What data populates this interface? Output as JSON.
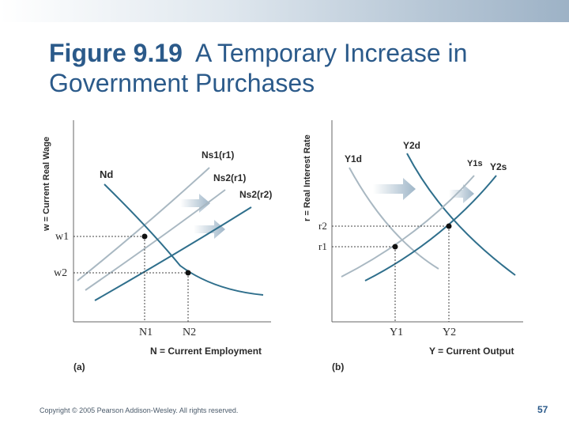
{
  "header": {
    "title_bold": "Figure 9.19",
    "title_rest": "A Temporary Increase in Government Purchases"
  },
  "panel_a": {
    "label": "(a)",
    "y_axis_label": "w = Current Real Wage",
    "x_axis_label": "N = Current Employment",
    "curve_nd": "Nd",
    "curve_ns1": "Ns1(r1)",
    "curve_ns2_r1": "Ns2(r1)",
    "curve_ns2_r2": "Ns2(r2)",
    "tick_w1": "w1",
    "tick_w2": "w2",
    "tick_n1": "N1",
    "tick_n2": "N2"
  },
  "panel_b": {
    "label": "(b)",
    "y_axis_label": "r = Real Interest Rate",
    "x_axis_label": "Y = Current Output",
    "curve_y1d": "Y1d",
    "curve_y2d": "Y2d",
    "curve_y1s": "Y1s",
    "curve_y2s": "Y2s",
    "tick_r1": "r1",
    "tick_r2": "r2",
    "tick_y1": "Y1",
    "tick_y2": "Y2"
  },
  "footer": {
    "copyright": "Copyright © 2005 Pearson Addison-Wesley. All rights reserved.",
    "page": "57"
  },
  "colors": {
    "title": "#2b5a8a",
    "dark_curve": "#2f6f8c",
    "light_curve": "#a9b8c2",
    "arrow": "#b9c9d6"
  }
}
